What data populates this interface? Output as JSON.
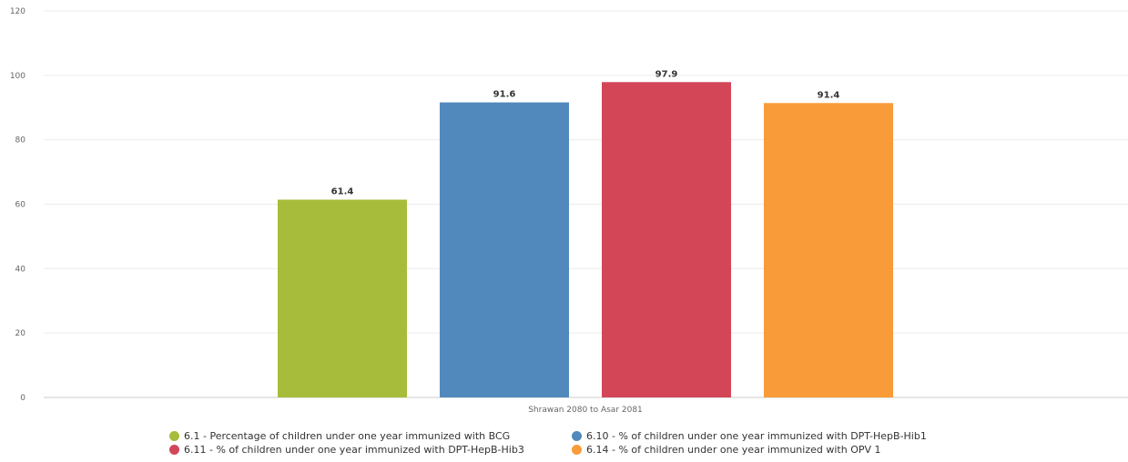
{
  "chart_data": {
    "type": "bar",
    "title": "",
    "xlabel": "",
    "ylabel": "",
    "ylim": [
      0,
      120
    ],
    "yticks": [
      0,
      20,
      40,
      60,
      80,
      100,
      120
    ],
    "categories": [
      "Shrawan 2080 to Asar 2081"
    ],
    "grid": true,
    "legend_position": "bottom",
    "series": [
      {
        "name": "6.1 - Percentage of children under one year immunized with BCG",
        "values": [
          61.4
        ],
        "color": "#a8bc3b"
      },
      {
        "name": "6.10 - % of children under one year immunized with DPT-HepB-Hib1",
        "values": [
          91.6
        ],
        "color": "#5189bd"
      },
      {
        "name": "6.11 - % of children under one year immunized with DPT-HepB-Hib3",
        "values": [
          97.9
        ],
        "color": "#d34658"
      },
      {
        "name": "6.14 - % of children under one year immunized with OPV 1",
        "values": [
          91.4
        ],
        "color": "#f89b38"
      }
    ]
  }
}
